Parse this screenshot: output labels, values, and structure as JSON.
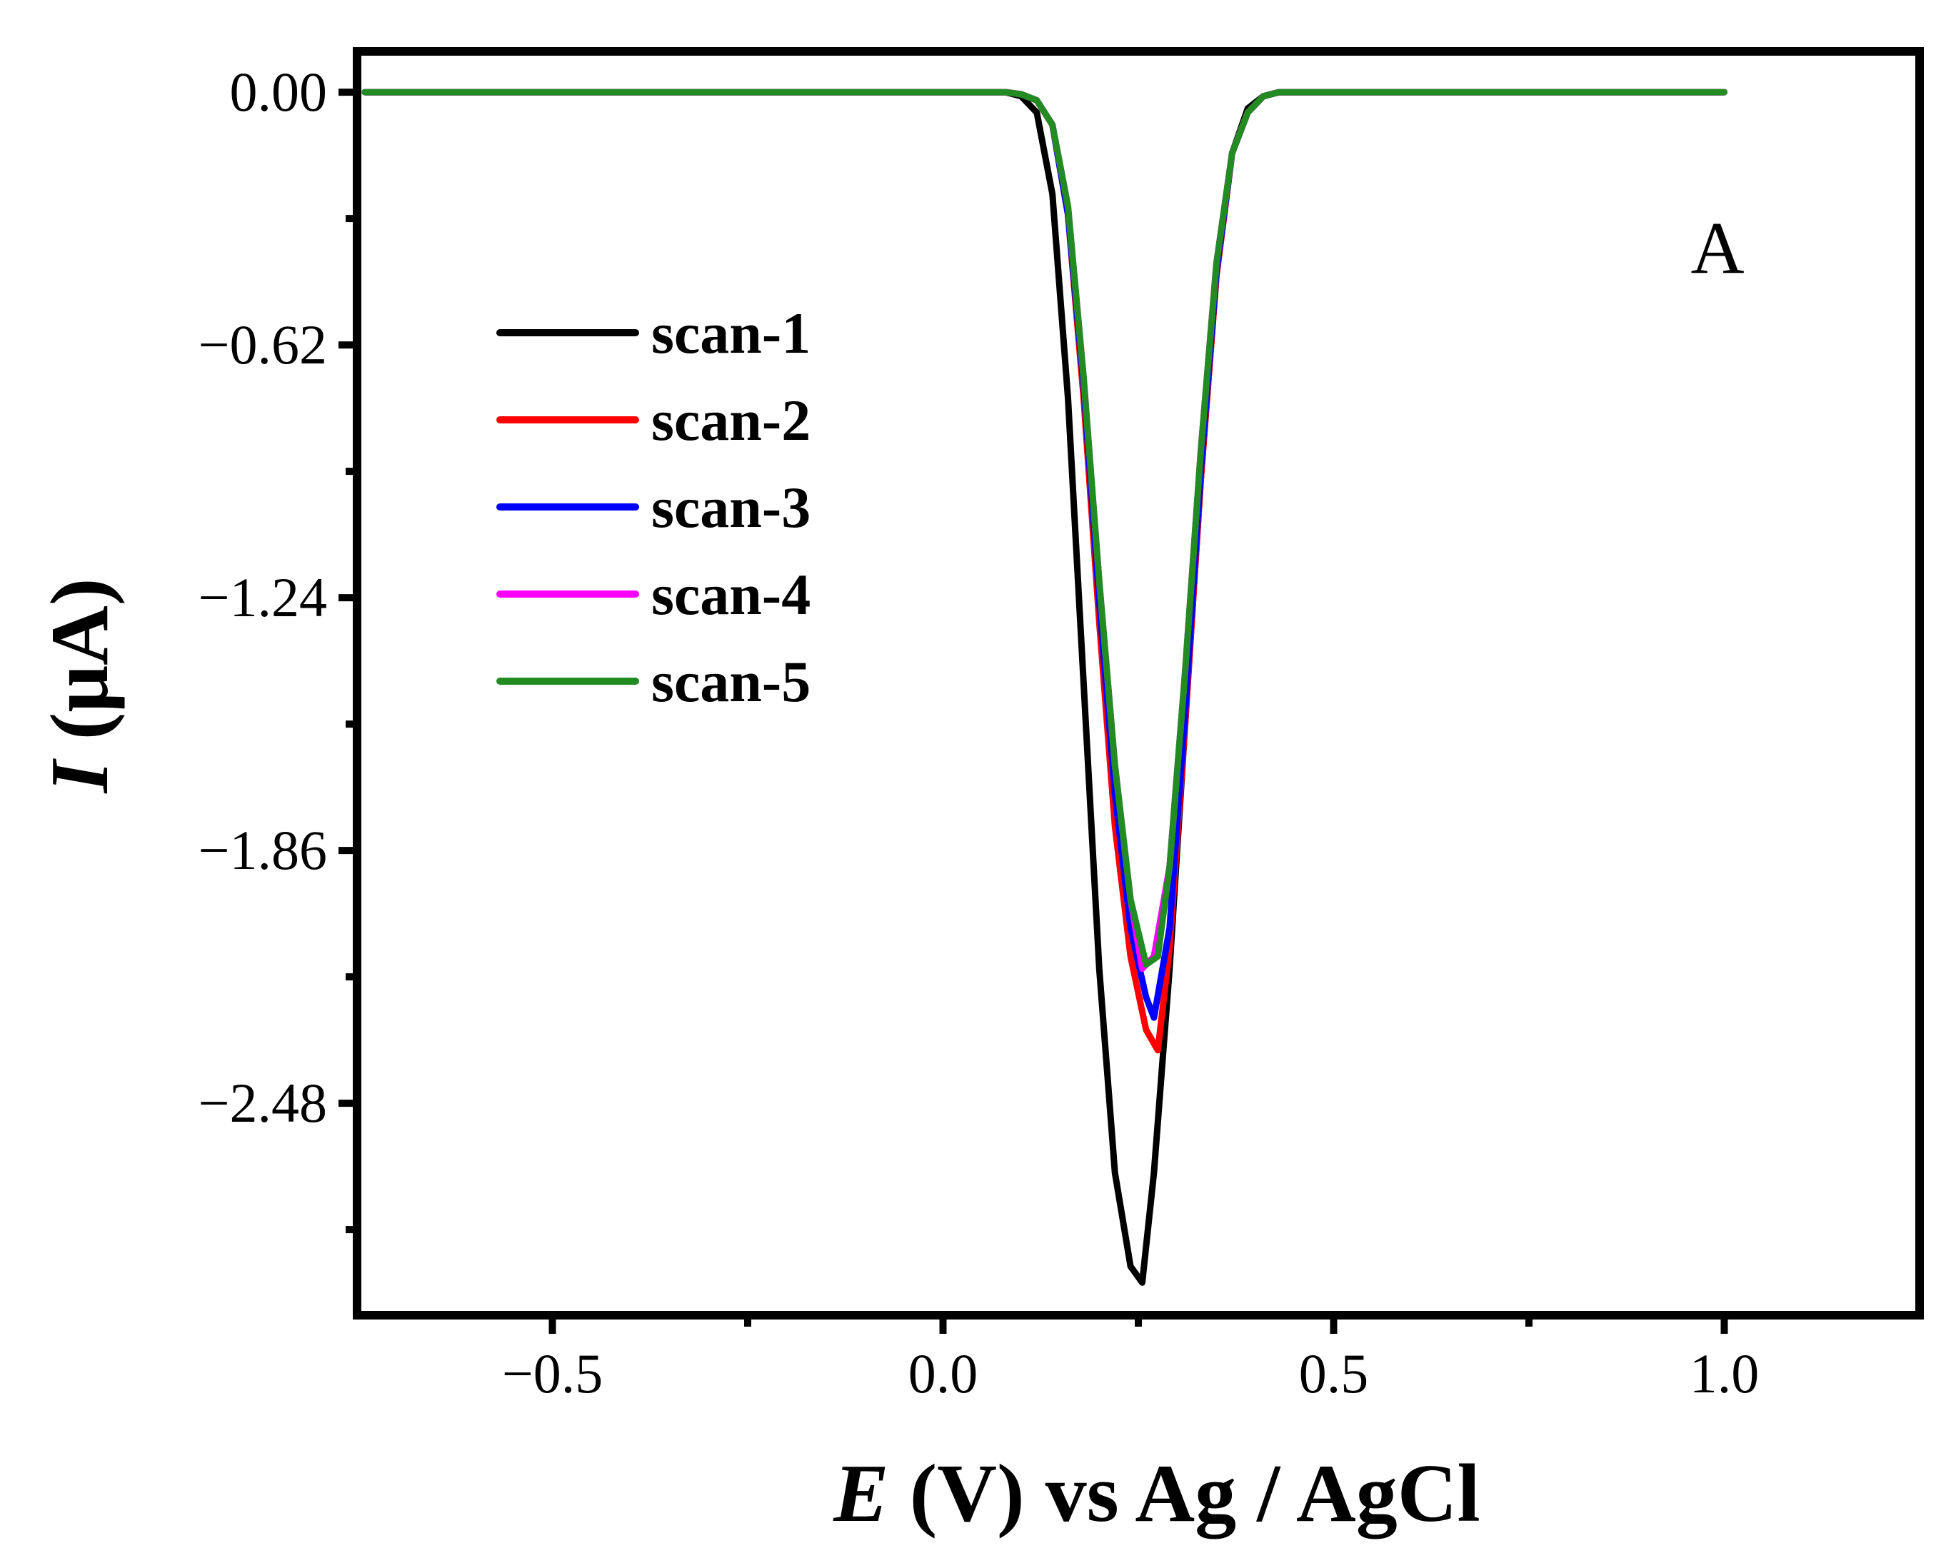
{
  "chart_data": {
    "type": "line",
    "panel_label": "A",
    "title": "",
    "xlabel": {
      "italic": "E",
      "rest": " (V) vs Ag / AgCl"
    },
    "ylabel": {
      "italic": "I",
      "rest": " (μA)"
    },
    "xlim": [
      -0.75,
      1.25
    ],
    "ylim": [
      -3.0,
      0.1
    ],
    "x_ticks": [
      -0.5,
      0.0,
      0.5,
      1.0
    ],
    "x_tick_labels": [
      "−0.5",
      "0.0",
      "0.5",
      "1.0"
    ],
    "x_minor_ticks": [
      -0.25,
      0.25,
      0.75
    ],
    "y_ticks": [
      0.0,
      -0.62,
      -1.24,
      -1.86,
      -2.48
    ],
    "y_tick_labels": [
      "0.00",
      "−0.62",
      "−1.24",
      "−1.86",
      "−2.48"
    ],
    "y_minor_ticks": [
      -0.31,
      -0.93,
      -1.55,
      -2.17,
      -2.79
    ],
    "grid": false,
    "legend_position": "upper-left",
    "series": [
      {
        "name": "scan-1",
        "color": "#000000",
        "x": [
          -0.74,
          0.0,
          0.08,
          0.1,
          0.12,
          0.14,
          0.16,
          0.18,
          0.2,
          0.22,
          0.24,
          0.255,
          0.27,
          0.29,
          0.31,
          0.33,
          0.35,
          0.37,
          0.39,
          0.41,
          0.43,
          0.45,
          0.5,
          1.0
        ],
        "y": [
          0.0,
          0.0,
          0.0,
          -0.01,
          -0.05,
          -0.25,
          -0.75,
          -1.45,
          -2.15,
          -2.65,
          -2.88,
          -2.92,
          -2.65,
          -2.15,
          -1.55,
          -0.95,
          -0.45,
          -0.15,
          -0.04,
          -0.01,
          0.0,
          0.0,
          0.0,
          0.0
        ]
      },
      {
        "name": "scan-2",
        "color": "#ff0000",
        "x": [
          -0.74,
          0.0,
          0.08,
          0.1,
          0.12,
          0.14,
          0.16,
          0.18,
          0.2,
          0.22,
          0.24,
          0.26,
          0.275,
          0.29,
          0.31,
          0.33,
          0.35,
          0.37,
          0.39,
          0.41,
          0.43,
          0.45,
          0.5,
          1.0
        ],
        "y": [
          0.0,
          0.0,
          0.0,
          -0.005,
          -0.02,
          -0.08,
          -0.3,
          -0.75,
          -1.3,
          -1.8,
          -2.12,
          -2.3,
          -2.35,
          -2.1,
          -1.55,
          -0.95,
          -0.45,
          -0.15,
          -0.05,
          -0.01,
          0.0,
          0.0,
          0.0,
          0.0
        ]
      },
      {
        "name": "scan-3",
        "color": "#0000ff",
        "x": [
          -0.74,
          0.0,
          0.08,
          0.1,
          0.12,
          0.14,
          0.16,
          0.18,
          0.2,
          0.22,
          0.24,
          0.26,
          0.27,
          0.29,
          0.31,
          0.33,
          0.35,
          0.37,
          0.39,
          0.41,
          0.43,
          0.45,
          0.5,
          1.0
        ],
        "y": [
          0.0,
          0.0,
          0.0,
          -0.005,
          -0.02,
          -0.08,
          -0.3,
          -0.72,
          -1.25,
          -1.72,
          -2.05,
          -2.22,
          -2.27,
          -2.05,
          -1.52,
          -0.93,
          -0.44,
          -0.15,
          -0.05,
          -0.01,
          0.0,
          0.0,
          0.0,
          0.0
        ]
      },
      {
        "name": "scan-4",
        "color": "#ff00ff",
        "x": [
          -0.74,
          0.0,
          0.08,
          0.1,
          0.12,
          0.14,
          0.16,
          0.18,
          0.2,
          0.22,
          0.24,
          0.255,
          0.27,
          0.29,
          0.31,
          0.33,
          0.35,
          0.37,
          0.39,
          0.41,
          0.43,
          0.45,
          0.5,
          1.0
        ],
        "y": [
          0.0,
          0.0,
          0.0,
          -0.005,
          -0.02,
          -0.08,
          -0.28,
          -0.7,
          -1.2,
          -1.65,
          -1.98,
          -2.15,
          -2.12,
          -1.9,
          -1.42,
          -0.88,
          -0.42,
          -0.15,
          -0.05,
          -0.01,
          0.0,
          0.0,
          0.0,
          0.0
        ]
      },
      {
        "name": "scan-5",
        "color": "#228b22",
        "x": [
          -0.74,
          0.0,
          0.08,
          0.1,
          0.12,
          0.14,
          0.16,
          0.18,
          0.2,
          0.22,
          0.24,
          0.26,
          0.275,
          0.29,
          0.31,
          0.33,
          0.35,
          0.37,
          0.39,
          0.41,
          0.43,
          0.45,
          0.5,
          1.0
        ],
        "y": [
          0.0,
          0.0,
          0.0,
          -0.005,
          -0.02,
          -0.08,
          -0.28,
          -0.7,
          -1.2,
          -1.65,
          -1.98,
          -2.14,
          -2.12,
          -1.9,
          -1.42,
          -0.88,
          -0.42,
          -0.15,
          -0.05,
          -0.01,
          0.0,
          0.0,
          0.0,
          0.0
        ]
      }
    ]
  }
}
